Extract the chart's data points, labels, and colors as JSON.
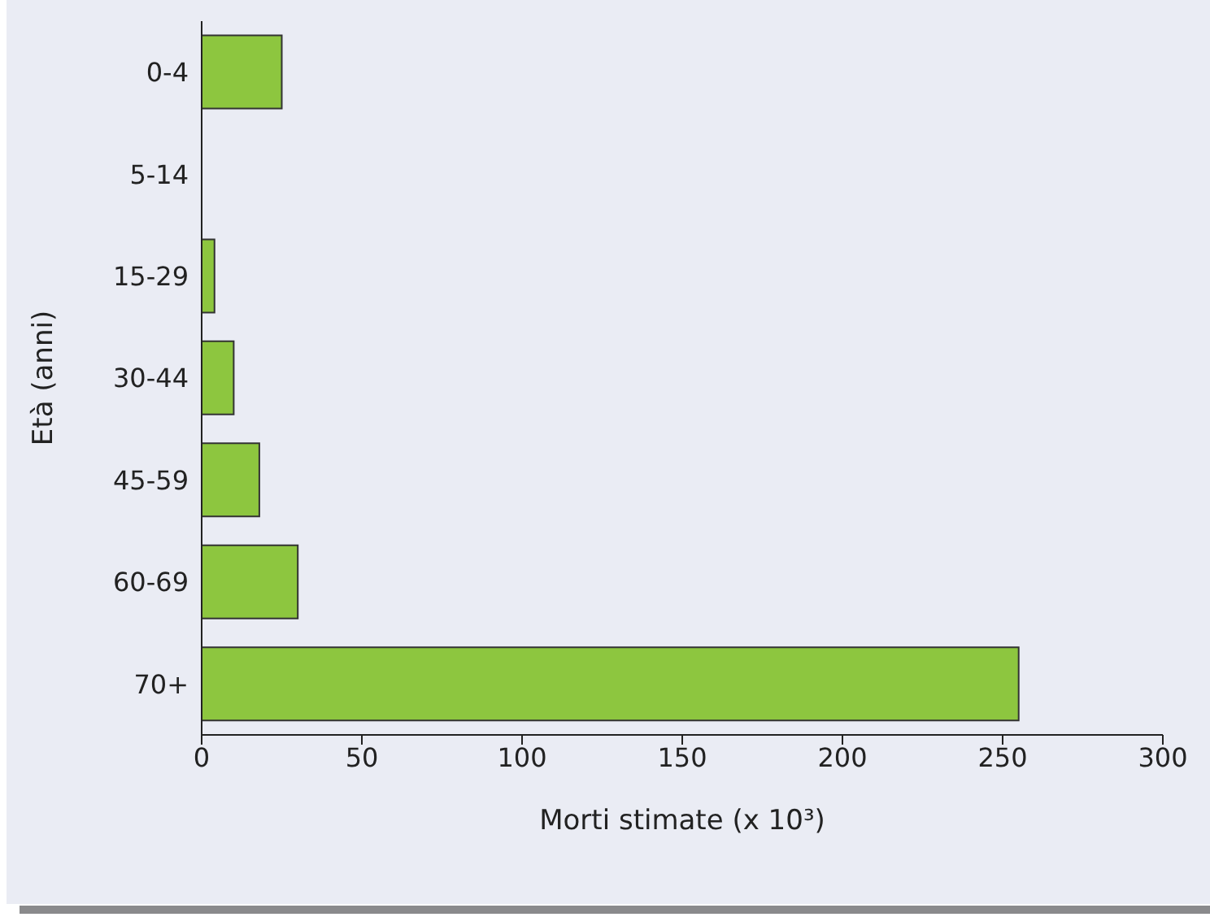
{
  "chart_data": {
    "type": "bar",
    "orientation": "horizontal",
    "xlabel": "Morti stimate (x 10³)",
    "ylabel": "Età (anni)",
    "categories": [
      "0-4",
      "5-14",
      "15-29",
      "30-44",
      "45-59",
      "60-69",
      "70+"
    ],
    "values": [
      25,
      0,
      4,
      10,
      18,
      30,
      255
    ],
    "color": "#8dc63f",
    "xlim": [
      0,
      300
    ],
    "xticks": [
      0,
      50,
      100,
      150,
      200,
      250,
      300
    ]
  }
}
